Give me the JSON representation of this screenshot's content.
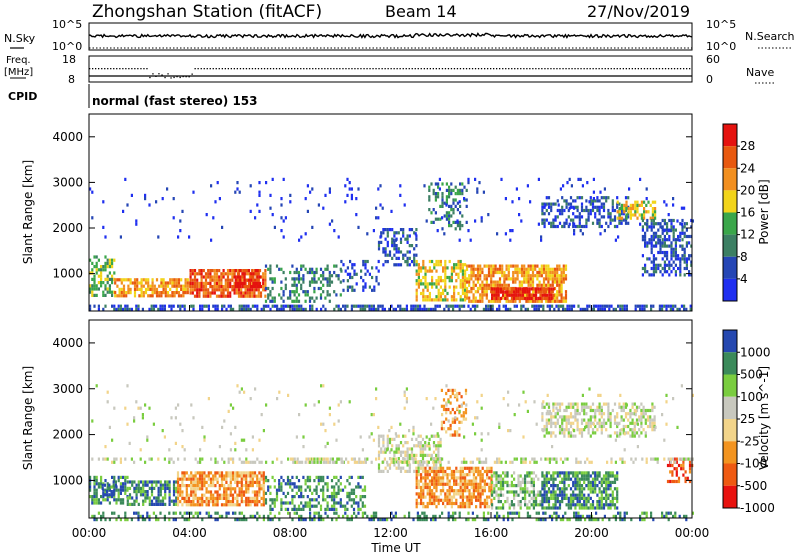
{
  "header": {
    "title": "Zhongshan Station (fitACF)",
    "beam": "Beam 14",
    "date": "27/Nov/2019"
  },
  "top_panel": {
    "left_label": "N.Sky",
    "left_ticks": [
      "10^5",
      "10^0"
    ],
    "right_label": "N.Search",
    "right_ticks": [
      "10^5",
      "10^0"
    ]
  },
  "freq_panel": {
    "left_label_line1": "Freq.",
    "left_label_line2": "[MHz]",
    "left_ticks": [
      "18",
      "8"
    ],
    "right_label": "Nave",
    "right_ticks": [
      "60",
      "0"
    ]
  },
  "cpid": {
    "label": "CPID",
    "text": "normal (fast stereo) 153"
  },
  "x_axis": {
    "label": "Time UT",
    "ticks": [
      "00:00",
      "04:00",
      "08:00",
      "12:00",
      "16:00",
      "20:00",
      "00:00"
    ]
  },
  "colors": {
    "power_scale": [
      "#1f2ff0",
      "#2546b5",
      "#3c7f63",
      "#3aa64a",
      "#f2d41a",
      "#f28f1f",
      "#e8590f",
      "#e5130f"
    ],
    "velocity_scale": [
      "#e8120f",
      "#ef5a12",
      "#f39420",
      "#f2d48a",
      "#c8c8be",
      "#7acd3f",
      "#3b8a5a",
      "#2548b0"
    ]
  },
  "chart_data": [
    {
      "type": "heatmap",
      "name": "power",
      "ylabel": "Slant Range [km]",
      "yticks": [
        "4000",
        "3000",
        "2000",
        "1000"
      ],
      "ylim": [
        180,
        4500
      ],
      "xlim_hours": [
        0,
        24
      ],
      "colorbar": {
        "label": "Power [dB]",
        "ticks": [
          "28",
          "24",
          "20",
          "16",
          "12",
          "8",
          "4"
        ]
      },
      "features": [
        {
          "t0": 0.0,
          "t1": 1.0,
          "r0": 500,
          "r1": 1400,
          "level": 3,
          "density": 0.55
        },
        {
          "t0": 1.0,
          "t1": 4.0,
          "r0": 500,
          "r1": 900,
          "level": 5,
          "density": 0.7
        },
        {
          "t0": 4.0,
          "t1": 7.0,
          "r0": 500,
          "r1": 1100,
          "level": 6,
          "density": 0.8
        },
        {
          "t0": 5.8,
          "t1": 6.8,
          "r0": 700,
          "r1": 1100,
          "level": 7,
          "density": 0.75
        },
        {
          "t0": 7.0,
          "t1": 10.0,
          "r0": 400,
          "r1": 1200,
          "level": 2,
          "density": 0.35
        },
        {
          "t0": 10.0,
          "t1": 11.5,
          "r0": 600,
          "r1": 1300,
          "level": 1,
          "density": 0.3
        },
        {
          "t0": 11.5,
          "t1": 13.0,
          "r0": 1200,
          "r1": 2000,
          "level": 1,
          "density": 0.45
        },
        {
          "t0": 13.0,
          "t1": 15.0,
          "r0": 400,
          "r1": 1300,
          "level": 4,
          "density": 0.6
        },
        {
          "t0": 13.5,
          "t1": 15.0,
          "r0": 2000,
          "r1": 3000,
          "level": 2,
          "density": 0.35
        },
        {
          "t0": 15.0,
          "t1": 19.0,
          "r0": 400,
          "r1": 1200,
          "level": 5,
          "density": 0.75
        },
        {
          "t0": 16.0,
          "t1": 18.5,
          "r0": 450,
          "r1": 700,
          "level": 7,
          "density": 0.8
        },
        {
          "t0": 18.0,
          "t1": 21.5,
          "r0": 2000,
          "r1": 2700,
          "level": 1,
          "density": 0.5
        },
        {
          "t0": 21.0,
          "t1": 22.5,
          "r0": 2200,
          "r1": 2600,
          "level": 4,
          "density": 0.6
        },
        {
          "t0": 22.0,
          "t1": 24.0,
          "r0": 1000,
          "r1": 2200,
          "level": 1,
          "density": 0.5
        },
        {
          "t0": 0.0,
          "t1": 24.0,
          "r0": 180,
          "r1": 320,
          "level": 1,
          "density": 0.6
        },
        {
          "t0": 0.0,
          "t1": 24.0,
          "r0": 1700,
          "r1": 3100,
          "level": 0,
          "density": 0.03
        }
      ]
    },
    {
      "type": "heatmap",
      "name": "velocity",
      "ylabel": "Slant Range [km]",
      "yticks": [
        "4000",
        "3000",
        "2000",
        "1000"
      ],
      "ylim": [
        180,
        4500
      ],
      "xlim_hours": [
        0,
        24
      ],
      "colorbar": {
        "label": "Velocity [m s^-1]",
        "ticks": [
          "1000",
          "500",
          "100",
          "25",
          "-25",
          "-100",
          "-500",
          "-1000"
        ]
      },
      "features": [
        {
          "t0": 0.0,
          "t1": 1.5,
          "r0": 500,
          "r1": 1100,
          "level": 6,
          "density": 0.6
        },
        {
          "t0": 0.5,
          "t1": 1.2,
          "r0": 700,
          "r1": 1000,
          "level": 7,
          "density": 0.5
        },
        {
          "t0": 1.5,
          "t1": 3.5,
          "r0": 500,
          "r1": 1000,
          "level": 6,
          "density": 0.7
        },
        {
          "t0": 3.5,
          "t1": 7.0,
          "r0": 500,
          "r1": 1200,
          "level": 2,
          "density": 0.75
        },
        {
          "t0": 7.0,
          "t1": 11.0,
          "r0": 400,
          "r1": 1100,
          "level": 6,
          "density": 0.45
        },
        {
          "t0": 8.0,
          "t1": 11.0,
          "r0": 1400,
          "r1": 1500,
          "level": 4,
          "density": 0.6
        },
        {
          "t0": 11.5,
          "t1": 14.0,
          "r0": 1200,
          "r1": 2000,
          "level": 4,
          "density": 0.5
        },
        {
          "t0": 13.0,
          "t1": 16.0,
          "r0": 400,
          "r1": 1300,
          "level": 2,
          "density": 0.75
        },
        {
          "t0": 14.0,
          "t1": 15.0,
          "r0": 2000,
          "r1": 3000,
          "level": 2,
          "density": 0.35
        },
        {
          "t0": 16.0,
          "t1": 18.0,
          "r0": 400,
          "r1": 1200,
          "level": 5,
          "density": 0.55
        },
        {
          "t0": 18.0,
          "t1": 21.0,
          "r0": 400,
          "r1": 1200,
          "level": 6,
          "density": 0.7
        },
        {
          "t0": 18.0,
          "t1": 22.5,
          "r0": 2000,
          "r1": 2700,
          "level": 4,
          "density": 0.55
        },
        {
          "t0": 23.0,
          "t1": 24.0,
          "r0": 1000,
          "r1": 1500,
          "level": 1,
          "density": 0.5
        },
        {
          "t0": 0.0,
          "t1": 24.0,
          "r0": 1400,
          "r1": 1500,
          "level": 4,
          "density": 0.35
        },
        {
          "t0": 0.0,
          "t1": 24.0,
          "r0": 180,
          "r1": 320,
          "level": 6,
          "density": 0.4
        },
        {
          "t0": 0.0,
          "t1": 24.0,
          "r0": 1700,
          "r1": 3100,
          "level": 4,
          "density": 0.03
        }
      ]
    }
  ]
}
